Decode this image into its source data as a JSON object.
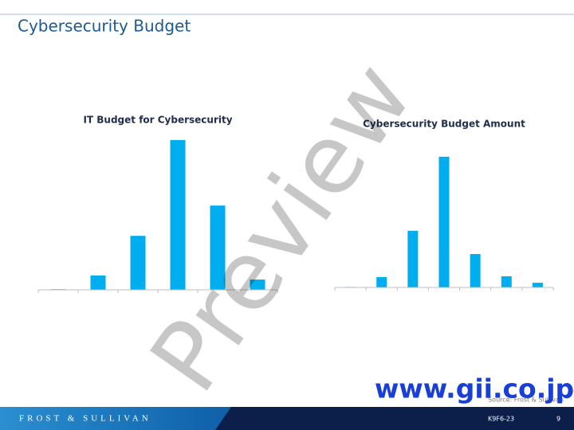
{
  "header": {
    "title": "Cybersecurity Budget"
  },
  "chart_data": [
    {
      "type": "bar",
      "title": "IT Budget for Cybersecurity",
      "categories": [
        null,
        null,
        null,
        null,
        null,
        null
      ],
      "values": [
        0.2,
        4.6,
        17.3,
        48,
        27,
        3.3
      ],
      "color": "#00aeef",
      "ylim": [
        0,
        50
      ]
    },
    {
      "type": "bar",
      "title": "Cybersecurity Budget Amount",
      "categories": [
        null,
        null,
        null,
        null,
        null,
        null,
        null
      ],
      "values": [
        0.2,
        4.2,
        22.9,
        52.8,
        13.5,
        4.5,
        1.9
      ],
      "color": "#00aeef",
      "ylim": [
        0,
        55
      ]
    }
  ],
  "source": "Source: Frost & Sullivan",
  "footer": {
    "brand": "FROST & SULLIVAN",
    "code": "K9F6-23",
    "page": "9"
  },
  "watermark": "Preview",
  "site": "www.gii.co.jp"
}
